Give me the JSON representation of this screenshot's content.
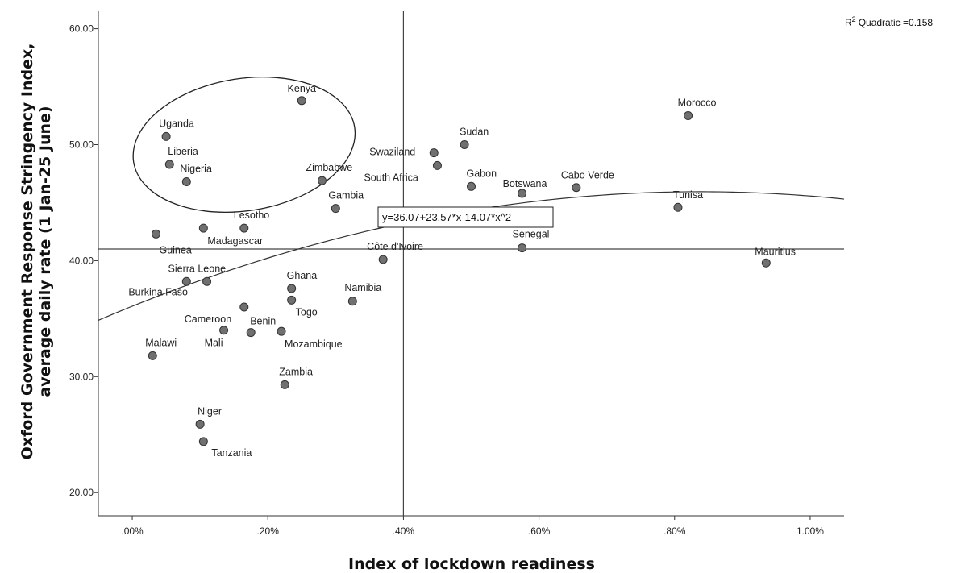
{
  "chart_data": {
    "type": "scatter",
    "xlabel": "Index of lockdown readiness",
    "ylabel_line1": "Oxford Government Response Stringency Index,",
    "ylabel_line2": "average daily rate (1 Jan-25 June)",
    "xlim": [
      -0.05,
      1.05
    ],
    "ylim": [
      18.0,
      61.5
    ],
    "x_ticks": [
      {
        "value": 0.0,
        "label": ".00%"
      },
      {
        "value": 0.2,
        "label": ".20%"
      },
      {
        "value": 0.4,
        "label": ".40%"
      },
      {
        "value": 0.6,
        "label": ".60%"
      },
      {
        "value": 0.8,
        "label": ".80%"
      },
      {
        "value": 1.0,
        "label": "1.00%"
      }
    ],
    "y_ticks": [
      {
        "value": 20,
        "label": "20.00"
      },
      {
        "value": 30,
        "label": "30.00"
      },
      {
        "value": 40,
        "label": "40.00"
      },
      {
        "value": 50,
        "label": "50.00"
      },
      {
        "value": 60,
        "label": "60.00"
      }
    ],
    "reference_lines": {
      "x": 0.4,
      "y": 41.0
    },
    "fit": {
      "equation": "y=36.07+23.57*x-14.07*x^2",
      "coefficients": [
        36.07,
        23.57,
        -14.07
      ],
      "r2_label": "Quadratic =0.158",
      "r2_prefix": "R",
      "r2_sup": "2"
    },
    "grid": false,
    "marker_color": "#707070",
    "points": [
      {
        "name": "Kenya",
        "x": 0.25,
        "y": 53.8
      },
      {
        "name": "Uganda",
        "x": 0.05,
        "y": 50.7
      },
      {
        "name": "Liberia",
        "x": 0.055,
        "y": 48.3
      },
      {
        "name": "Nigeria",
        "x": 0.08,
        "y": 46.8
      },
      {
        "name": "Morocco",
        "x": 0.82,
        "y": 52.5
      },
      {
        "name": "Sudan",
        "x": 0.49,
        "y": 50.0
      },
      {
        "name": "Swaziland",
        "x": 0.445,
        "y": 49.3
      },
      {
        "name": "South Africa",
        "x": 0.45,
        "y": 48.2
      },
      {
        "name": "Zimbabwe",
        "x": 0.28,
        "y": 46.9
      },
      {
        "name": "Gabon",
        "x": 0.5,
        "y": 46.4
      },
      {
        "name": "Cabo Verde",
        "x": 0.655,
        "y": 46.3
      },
      {
        "name": "Botswana",
        "x": 0.575,
        "y": 45.8
      },
      {
        "name": "Tunisa",
        "x": 0.805,
        "y": 44.6
      },
      {
        "name": "Gambia",
        "x": 0.3,
        "y": 44.5
      },
      {
        "name": "Lesotho",
        "x": 0.165,
        "y": 42.8
      },
      {
        "name": "Madagascar",
        "x": 0.105,
        "y": 42.8
      },
      {
        "name": "Guinea",
        "x": 0.035,
        "y": 42.3
      },
      {
        "name": "Senegal",
        "x": 0.575,
        "y": 41.1
      },
      {
        "name": "Côte d'Ivoire",
        "x": 0.37,
        "y": 40.1
      },
      {
        "name": "Mauritius",
        "x": 0.935,
        "y": 39.8
      },
      {
        "name": "Sierra Leone",
        "x": 0.11,
        "y": 38.2
      },
      {
        "name": "Burkina Faso",
        "x": 0.08,
        "y": 38.2
      },
      {
        "name": "Ghana",
        "x": 0.235,
        "y": 37.6
      },
      {
        "name": "Togo",
        "x": 0.235,
        "y": 36.6
      },
      {
        "name": "Namibia",
        "x": 0.325,
        "y": 36.5
      },
      {
        "name": "Cameroon",
        "x": 0.165,
        "y": 36.0
      },
      {
        "name": "Benin",
        "x": 0.175,
        "y": 33.8
      },
      {
        "name": "Mali",
        "x": 0.135,
        "y": 34.0
      },
      {
        "name": "Mozambique",
        "x": 0.22,
        "y": 33.9
      },
      {
        "name": "Malawi",
        "x": 0.03,
        "y": 31.8
      },
      {
        "name": "Zambia",
        "x": 0.225,
        "y": 29.3
      },
      {
        "name": "Niger",
        "x": 0.1,
        "y": 25.9
      },
      {
        "name": "Tanzania",
        "x": 0.105,
        "y": 24.4
      }
    ],
    "annotations": [
      {
        "type": "ellipse",
        "cx": 0.165,
        "cy": 50.0,
        "rx": 0.165,
        "ry": 5.7,
        "rotation_deg": -9
      }
    ]
  }
}
